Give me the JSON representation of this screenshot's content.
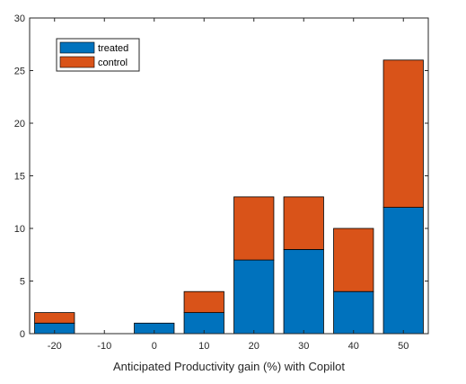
{
  "chart_data": {
    "type": "bar",
    "stacked": true,
    "categories": [
      "-20",
      "-10",
      "0",
      "10",
      "20",
      "30",
      "40",
      "50"
    ],
    "series": [
      {
        "name": "treated",
        "color": "#0072BD",
        "values": [
          1,
          0,
          1,
          2,
          7,
          8,
          4,
          12
        ]
      },
      {
        "name": "control",
        "color": "#D95319",
        "values": [
          1,
          0,
          0,
          2,
          6,
          5,
          6,
          14
        ]
      }
    ],
    "xlabel": "Anticipated Productivity gain (%) with Copilot",
    "ylim": [
      0,
      30
    ],
    "yticks": [
      0,
      5,
      10,
      15,
      20,
      25,
      30
    ],
    "legend": "top-left",
    "grid": false
  }
}
